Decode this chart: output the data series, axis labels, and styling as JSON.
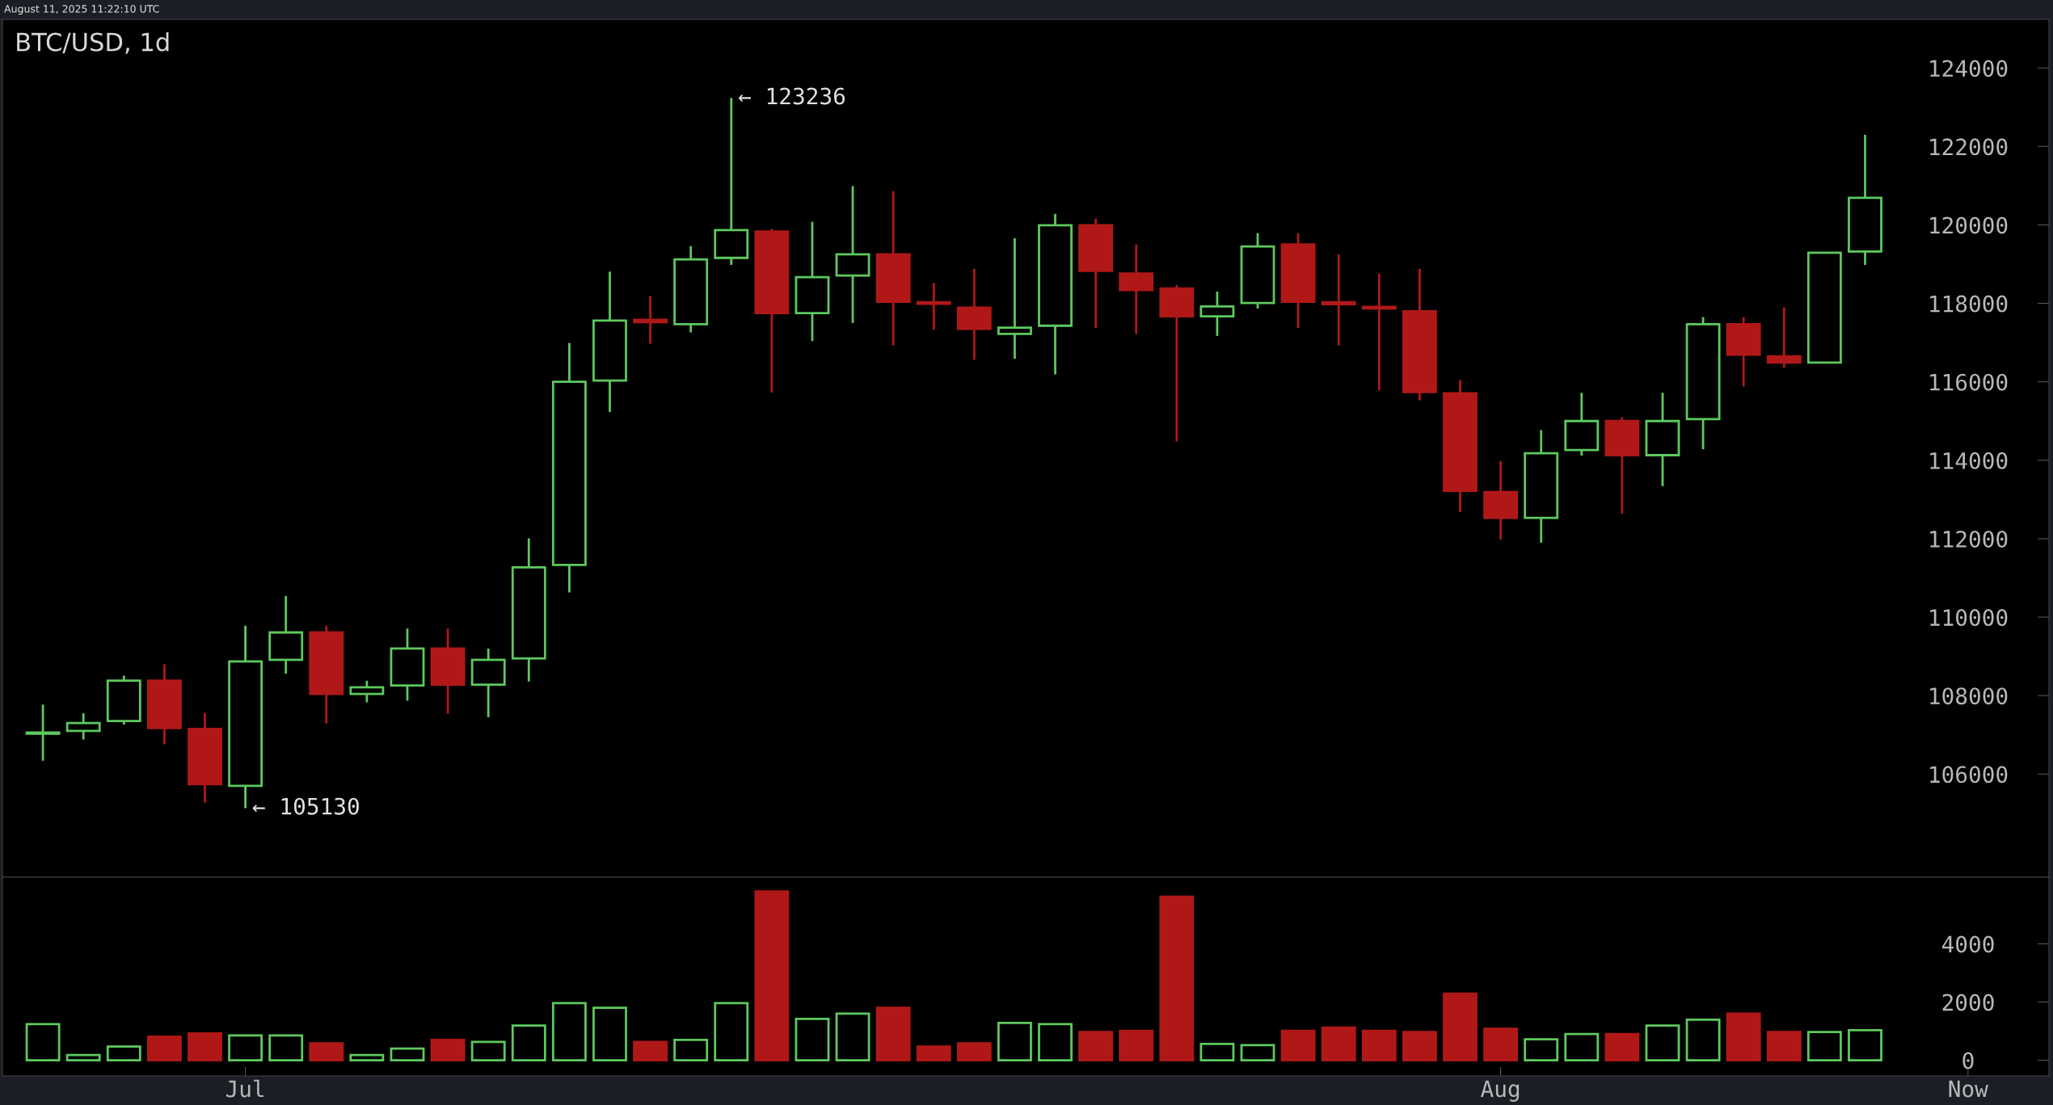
{
  "chart_data": [
    {
      "type": "candlestick",
      "title": "BTC/USD, 1d",
      "subtitle": "August 11, 2025 11:22:10 UTC",
      "x": [
        "2025-06-26",
        "2025-06-27",
        "2025-06-28",
        "2025-06-29",
        "2025-06-30",
        "2025-07-01",
        "2025-07-02",
        "2025-07-03",
        "2025-07-04",
        "2025-07-05",
        "2025-07-06",
        "2025-07-07",
        "2025-07-08",
        "2025-07-09",
        "2025-07-10",
        "2025-07-11",
        "2025-07-12",
        "2025-07-13",
        "2025-07-14",
        "2025-07-15",
        "2025-07-16",
        "2025-07-17",
        "2025-07-18",
        "2025-07-19",
        "2025-07-20",
        "2025-07-21",
        "2025-07-22",
        "2025-07-23",
        "2025-07-24",
        "2025-07-25",
        "2025-07-26",
        "2025-07-27",
        "2025-07-28",
        "2025-07-29",
        "2025-07-30",
        "2025-07-31",
        "2025-08-01",
        "2025-08-02",
        "2025-08-03",
        "2025-08-04",
        "2025-08-05",
        "2025-08-06",
        "2025-08-07",
        "2025-08-08",
        "2025-08-09",
        "2025-08-10"
      ],
      "ohlc": [
        [
          107030,
          107770,
          106340,
          107060
        ],
        [
          107100,
          107550,
          106880,
          107300
        ],
        [
          107350,
          108510,
          107260,
          108380
        ],
        [
          108380,
          108800,
          106760,
          107170
        ],
        [
          107150,
          107560,
          105270,
          105740
        ],
        [
          105700,
          109780,
          105130,
          108870
        ],
        [
          108910,
          110540,
          108560,
          109610
        ],
        [
          109610,
          109780,
          107290,
          108040
        ],
        [
          108040,
          108380,
          107830,
          108210
        ],
        [
          108260,
          109710,
          107870,
          109200
        ],
        [
          109200,
          109710,
          107540,
          108280
        ],
        [
          108280,
          109200,
          107450,
          108910
        ],
        [
          108950,
          112010,
          108360,
          111270
        ],
        [
          111330,
          116990,
          110630,
          116000
        ],
        [
          116030,
          118810,
          115230,
          117560
        ],
        [
          117580,
          118190,
          116970,
          117520
        ],
        [
          117470,
          119460,
          117260,
          119120
        ],
        [
          119160,
          123236,
          118980,
          119870
        ],
        [
          119830,
          119900,
          115730,
          117750
        ],
        [
          117750,
          120080,
          117040,
          118670
        ],
        [
          118710,
          120990,
          117500,
          119250
        ],
        [
          119250,
          120860,
          116930,
          118040
        ],
        [
          118030,
          118520,
          117330,
          117990
        ],
        [
          117890,
          118880,
          116560,
          117350
        ],
        [
          117220,
          119660,
          116590,
          117380
        ],
        [
          117430,
          120280,
          116190,
          119990
        ],
        [
          119990,
          120160,
          117370,
          118830
        ],
        [
          118760,
          119500,
          117220,
          118340
        ],
        [
          118380,
          118470,
          114480,
          117670
        ],
        [
          117670,
          118300,
          117170,
          117920
        ],
        [
          118010,
          119790,
          117870,
          119450
        ],
        [
          119500,
          119790,
          117370,
          118040
        ],
        [
          118030,
          119250,
          116930,
          117980
        ],
        [
          117910,
          118760,
          115780,
          117870
        ],
        [
          117800,
          118880,
          115530,
          115740
        ],
        [
          115710,
          116050,
          112680,
          113220
        ],
        [
          113190,
          113980,
          111980,
          112530
        ],
        [
          112530,
          114770,
          111900,
          114180
        ],
        [
          114260,
          115720,
          114120,
          115000
        ],
        [
          115000,
          115100,
          112640,
          114130
        ],
        [
          114130,
          115720,
          113340,
          115000
        ],
        [
          115050,
          117650,
          114280,
          117470
        ],
        [
          117470,
          117650,
          115880,
          116690
        ],
        [
          116650,
          117900,
          116360,
          116490
        ],
        [
          116490,
          119290,
          116480,
          119290
        ],
        [
          119320,
          122300,
          118980,
          120690
        ]
      ],
      "colors": [
        "#5ec95e",
        "#5ec95e",
        "#5ec95e",
        "#b01818",
        "#b01818",
        "#5ec95e",
        "#5ec95e",
        "#b01818",
        "#5ec95e",
        "#5ec95e",
        "#b01818",
        "#5ec95e",
        "#5ec95e",
        "#5ec95e",
        "#5ec95e",
        "#b01818",
        "#5ec95e",
        "#5ec95e",
        "#b01818",
        "#5ec95e",
        "#5ec95e",
        "#b01818",
        "#b01818",
        "#b01818",
        "#5ec95e",
        "#5ec95e",
        "#b01818",
        "#b01818",
        "#b01818",
        "#5ec95e",
        "#5ec95e",
        "#b01818",
        "#b01818",
        "#b01818",
        "#b01818",
        "#b01818",
        "#b01818",
        "#5ec95e",
        "#5ec95e",
        "#b01818",
        "#5ec95e",
        "#5ec95e",
        "#b01818",
        "#b01818",
        "#5ec95e",
        "#5ec95e"
      ],
      "xlim": [
        "2025-06-25",
        "2025-08-14T13:00"
      ],
      "ylim": [
        103370,
        125240
      ],
      "yticks": [
        106000,
        108000,
        110000,
        112000,
        114000,
        116000,
        118000,
        120000,
        122000,
        124000
      ],
      "tick_labels": "y",
      "annotations": [
        {
          "text": "← 123236",
          "x": "2025-07-13",
          "y": 123236
        },
        {
          "text": "← 105130",
          "x": "2025-07-01",
          "y": 105130
        }
      ]
    },
    {
      "type": "bar",
      "x": [
        "2025-06-26",
        "2025-06-27",
        "2025-06-28",
        "2025-06-29",
        "2025-06-30",
        "2025-07-01",
        "2025-07-02",
        "2025-07-03",
        "2025-07-04",
        "2025-07-05",
        "2025-07-06",
        "2025-07-07",
        "2025-07-08",
        "2025-07-09",
        "2025-07-10",
        "2025-07-11",
        "2025-07-12",
        "2025-07-13",
        "2025-07-14",
        "2025-07-15",
        "2025-07-16",
        "2025-07-17",
        "2025-07-18",
        "2025-07-19",
        "2025-07-20",
        "2025-07-21",
        "2025-07-22",
        "2025-07-23",
        "2025-07-24",
        "2025-07-25",
        "2025-07-26",
        "2025-07-27",
        "2025-07-28",
        "2025-07-29",
        "2025-07-30",
        "2025-07-31",
        "2025-08-01",
        "2025-08-02",
        "2025-08-03",
        "2025-08-04",
        "2025-08-05",
        "2025-08-06",
        "2025-08-07",
        "2025-08-08",
        "2025-08-09",
        "2025-08-10"
      ],
      "values": [
        1240,
        180,
        470,
        810,
        920,
        850,
        850,
        580,
        180,
        400,
        700,
        630,
        1190,
        1960,
        1800,
        630,
        700,
        1960,
        5800,
        1420,
        1600,
        1800,
        470,
        580,
        1280,
        1240,
        970,
        1010,
        5620,
        560,
        520,
        1010,
        1120,
        1010,
        970,
        2290,
        1080,
        720,
        900,
        900,
        1190,
        1390,
        1600,
        970,
        970,
        1030
      ],
      "colors": [
        "#5ec95e",
        "#5ec95e",
        "#5ec95e",
        "#b01818",
        "#b01818",
        "#5ec95e",
        "#5ec95e",
        "#b01818",
        "#5ec95e",
        "#5ec95e",
        "#b01818",
        "#5ec95e",
        "#5ec95e",
        "#5ec95e",
        "#5ec95e",
        "#b01818",
        "#5ec95e",
        "#5ec95e",
        "#b01818",
        "#5ec95e",
        "#5ec95e",
        "#b01818",
        "#b01818",
        "#b01818",
        "#5ec95e",
        "#5ec95e",
        "#b01818",
        "#b01818",
        "#b01818",
        "#5ec95e",
        "#5ec95e",
        "#b01818",
        "#b01818",
        "#b01818",
        "#b01818",
        "#b01818",
        "#b01818",
        "#5ec95e",
        "#5ec95e",
        "#b01818",
        "#5ec95e",
        "#5ec95e",
        "#b01818",
        "#b01818",
        "#5ec95e",
        "#5ec95e"
      ],
      "xlim": [
        "2025-06-25",
        "2025-08-14T13:00"
      ],
      "xticks": [
        {
          "value": "2025-07-01",
          "label": "Jul"
        },
        {
          "value": "2025-08-01",
          "label": "Aug"
        },
        {
          "value": "2025-08-12T13:00",
          "label": "Now"
        }
      ],
      "ylim": [
        -540,
        6290
      ],
      "yticks": [
        0,
        2000,
        4000
      ]
    }
  ]
}
